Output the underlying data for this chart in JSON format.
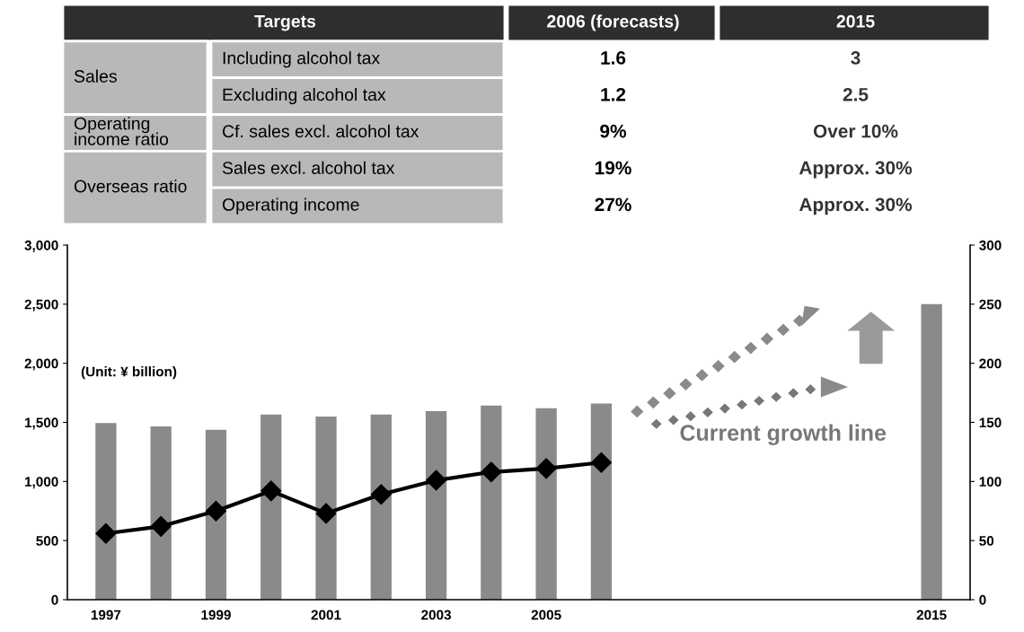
{
  "chart_data": [
    {
      "type": "other",
      "annotations": [
        "Targets",
        "2006 (forecasts)",
        "2015",
        "Sales",
        "Including alcohol tax",
        "1.6",
        "3",
        "Excluding alcohol tax",
        "1.2",
        "2.5",
        "Operating\nincome ratio",
        "Cf. sales excl. alcohol tax",
        "9%",
        "Over 10%",
        "Overseas ratio",
        "Sales excl. alcohol tax",
        "19%",
        "Approx. 30%",
        "Operating income",
        "27%",
        "Approx. 30%"
      ]
    },
    {
      "type": "bar",
      "categories": [
        "1997",
        null,
        "1999",
        null,
        "2001",
        null,
        "2003",
        null,
        "2005",
        null,
        null,
        null,
        null,
        null,
        null,
        "2015"
      ],
      "series": [
        {
          "type": "bar",
          "color": "#8a8a8a",
          "values": [
            1494,
            1465,
            1437,
            1566,
            1550,
            1566,
            1594,
            1642,
            1620,
            1660,
            null,
            null,
            null,
            null,
            null,
            2500
          ]
        },
        {
          "type": "line",
          "axis": "y2",
          "color": "#000000",
          "marker": "diamond",
          "values": [
            56,
            62,
            75,
            92,
            73,
            89,
            101,
            108,
            111,
            116,
            null,
            null,
            null,
            null,
            null,
            null
          ]
        }
      ],
      "ylim": [
        0,
        3000
      ],
      "yticks": [
        0,
        {
          "value": 500,
          "label": "500"
        },
        {
          "value": 1000,
          "label": "1,000"
        },
        {
          "value": 1500,
          "label": "1,500"
        },
        {
          "value": 2000,
          "label": "2,000"
        },
        {
          "value": 2500,
          "label": "2,500"
        },
        {
          "value": 3000,
          "label": "3,000"
        }
      ],
      "y2lim": [
        0,
        300
      ],
      "y2ticks": [
        0,
        50,
        100,
        150,
        200,
        250,
        300
      ],
      "annotations": [
        "(Unit: ¥ billion)",
        "Current growth line"
      ]
    }
  ]
}
